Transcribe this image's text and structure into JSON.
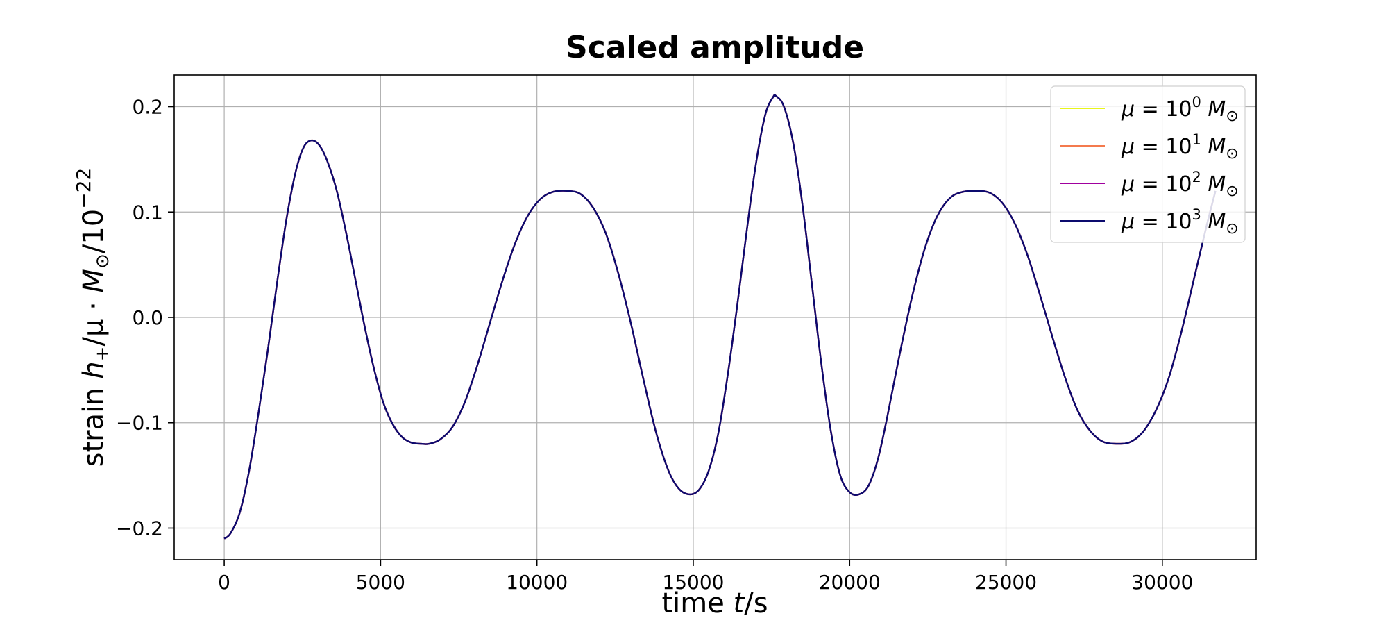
{
  "chart_data": {
    "type": "line",
    "title": "Scaled amplitude",
    "xlabel": {
      "pre": "time ",
      "var": "t",
      "post": "/s"
    },
    "ylabel": {
      "pre": "strain ",
      "h": "h",
      "sub": "+",
      "mid": "/μ · ",
      "M": "M",
      "sun": "⊙",
      "post": "/10",
      "exp": "−22"
    },
    "xlim": [
      -1600,
      33000
    ],
    "ylim": [
      -0.23,
      0.23
    ],
    "xticks": [
      0,
      5000,
      10000,
      15000,
      20000,
      25000,
      30000
    ],
    "xtick_labels": [
      "0",
      "5000",
      "10000",
      "15000",
      "20000",
      "25000",
      "30000"
    ],
    "yticks": [
      -0.2,
      -0.1,
      0.0,
      0.1,
      0.2
    ],
    "ytick_labels": [
      "−0.2",
      "−0.1",
      "0.0",
      "0.1",
      "0.2"
    ],
    "grid": true,
    "legend_position": "top-right",
    "series": [
      {
        "name": "μ = 10⁰ M⊙",
        "mu_exp": "0",
        "color": "#e8f51d"
      },
      {
        "name": "μ = 10¹ M⊙",
        "mu_exp": "1",
        "color": "#f47a4d"
      },
      {
        "name": "μ = 10² M⊙",
        "mu_exp": "2",
        "color": "#a0009e"
      },
      {
        "name": "μ = 10³ M⊙",
        "mu_exp": "3",
        "color": "#0c0b6e"
      }
    ],
    "curve_points": [
      [
        0,
        -0.21
      ],
      [
        200,
        -0.205
      ],
      [
        500,
        -0.185
      ],
      [
        800,
        -0.145
      ],
      [
        1100,
        -0.09
      ],
      [
        1400,
        -0.03
      ],
      [
        1700,
        0.035
      ],
      [
        2000,
        0.095
      ],
      [
        2300,
        0.14
      ],
      [
        2550,
        0.162
      ],
      [
        2800,
        0.168
      ],
      [
        3050,
        0.163
      ],
      [
        3300,
        0.148
      ],
      [
        3600,
        0.12
      ],
      [
        3900,
        0.08
      ],
      [
        4200,
        0.035
      ],
      [
        4500,
        -0.01
      ],
      [
        4800,
        -0.05
      ],
      [
        5100,
        -0.082
      ],
      [
        5400,
        -0.102
      ],
      [
        5700,
        -0.114
      ],
      [
        6000,
        -0.119
      ],
      [
        6300,
        -0.12
      ],
      [
        6550,
        -0.12
      ],
      [
        6900,
        -0.116
      ],
      [
        7300,
        -0.104
      ],
      [
        7700,
        -0.08
      ],
      [
        8100,
        -0.045
      ],
      [
        8500,
        -0.005
      ],
      [
        8900,
        0.035
      ],
      [
        9300,
        0.07
      ],
      [
        9700,
        0.096
      ],
      [
        10100,
        0.112
      ],
      [
        10500,
        0.119
      ],
      [
        11000,
        0.12
      ],
      [
        11400,
        0.117
      ],
      [
        11800,
        0.104
      ],
      [
        12200,
        0.08
      ],
      [
        12600,
        0.042
      ],
      [
        13000,
        -0.005
      ],
      [
        13400,
        -0.058
      ],
      [
        13800,
        -0.108
      ],
      [
        14200,
        -0.145
      ],
      [
        14550,
        -0.163
      ],
      [
        14900,
        -0.168
      ],
      [
        15200,
        -0.163
      ],
      [
        15500,
        -0.145
      ],
      [
        15800,
        -0.11
      ],
      [
        16100,
        -0.055
      ],
      [
        16400,
        0.01
      ],
      [
        16700,
        0.08
      ],
      [
        17000,
        0.145
      ],
      [
        17300,
        0.192
      ],
      [
        17550,
        0.209
      ],
      [
        17650,
        0.21
      ],
      [
        17900,
        0.2
      ],
      [
        18200,
        0.165
      ],
      [
        18500,
        0.105
      ],
      [
        18800,
        0.03
      ],
      [
        19100,
        -0.045
      ],
      [
        19400,
        -0.108
      ],
      [
        19700,
        -0.15
      ],
      [
        20000,
        -0.166
      ],
      [
        20300,
        -0.168
      ],
      [
        20600,
        -0.16
      ],
      [
        20900,
        -0.135
      ],
      [
        21200,
        -0.095
      ],
      [
        21600,
        -0.035
      ],
      [
        22000,
        0.02
      ],
      [
        22400,
        0.065
      ],
      [
        22800,
        0.096
      ],
      [
        23200,
        0.113
      ],
      [
        23600,
        0.119
      ],
      [
        24100,
        0.12
      ],
      [
        24500,
        0.118
      ],
      [
        24900,
        0.108
      ],
      [
        25300,
        0.088
      ],
      [
        25700,
        0.058
      ],
      [
        26100,
        0.02
      ],
      [
        26500,
        -0.02
      ],
      [
        26900,
        -0.058
      ],
      [
        27300,
        -0.089
      ],
      [
        27700,
        -0.108
      ],
      [
        28100,
        -0.118
      ],
      [
        28600,
        -0.12
      ],
      [
        29000,
        -0.118
      ],
      [
        29400,
        -0.108
      ],
      [
        29800,
        -0.088
      ],
      [
        30200,
        -0.058
      ],
      [
        30600,
        -0.015
      ],
      [
        31000,
        0.035
      ],
      [
        31400,
        0.085
      ],
      [
        31700,
        0.12
      ]
    ]
  }
}
